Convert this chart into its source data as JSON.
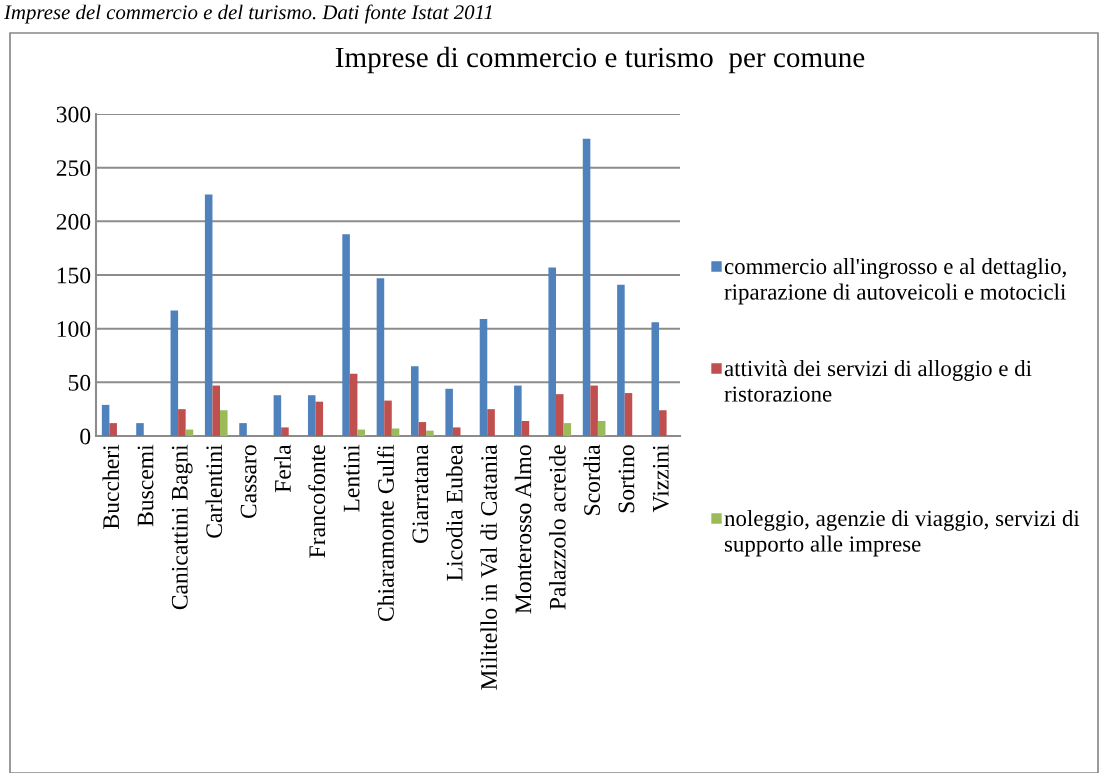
{
  "chart_data": {
    "type": "bar",
    "title": "Imprese di commercio e turismo  per comune",
    "annotations": [
      "Imprese del commercio e del turismo. Dati fonte Istat 2011"
    ],
    "categories": [
      "Buccheri",
      "Buscemi",
      "Canicattini Bagni",
      "Carlentini",
      "Cassaro",
      "Ferla",
      "Francofonte",
      "Lentini",
      "Chiaramonte Gulfi",
      "Giarratana",
      "Licodia Eubea",
      "Militello in Val di Catania",
      "Monterosso Almo",
      "Palazzolo acreide",
      "Scordia",
      "Sortino",
      "Vizzini"
    ],
    "series": [
      {
        "name": "commercio all'ingrosso e al dettaglio, riparazione di autoveicoli e motocicli",
        "color": "#4f81bd",
        "values": [
          29,
          12,
          117,
          225,
          12,
          38,
          38,
          188,
          147,
          65,
          44,
          109,
          47,
          157,
          277,
          141,
          106
        ]
      },
      {
        "name": "attività dei servizi di alloggio e di ristorazione",
        "color": "#c0504d",
        "values": [
          12,
          0,
          25,
          47,
          0,
          8,
          32,
          58,
          33,
          13,
          8,
          25,
          14,
          39,
          47,
          40,
          24
        ]
      },
      {
        "name": "noleggio, agenzie di viaggio, servizi di supporto alle imprese",
        "color": "#9bbb59",
        "values": [
          0,
          0,
          6,
          24,
          0,
          0,
          0,
          6,
          7,
          5,
          0,
          0,
          0,
          12,
          14,
          0,
          0
        ]
      }
    ],
    "ylim": [
      0,
      300
    ],
    "yticks": [
      0,
      50,
      100,
      150,
      200,
      250,
      300
    ],
    "grid": "y",
    "legend": "right"
  }
}
